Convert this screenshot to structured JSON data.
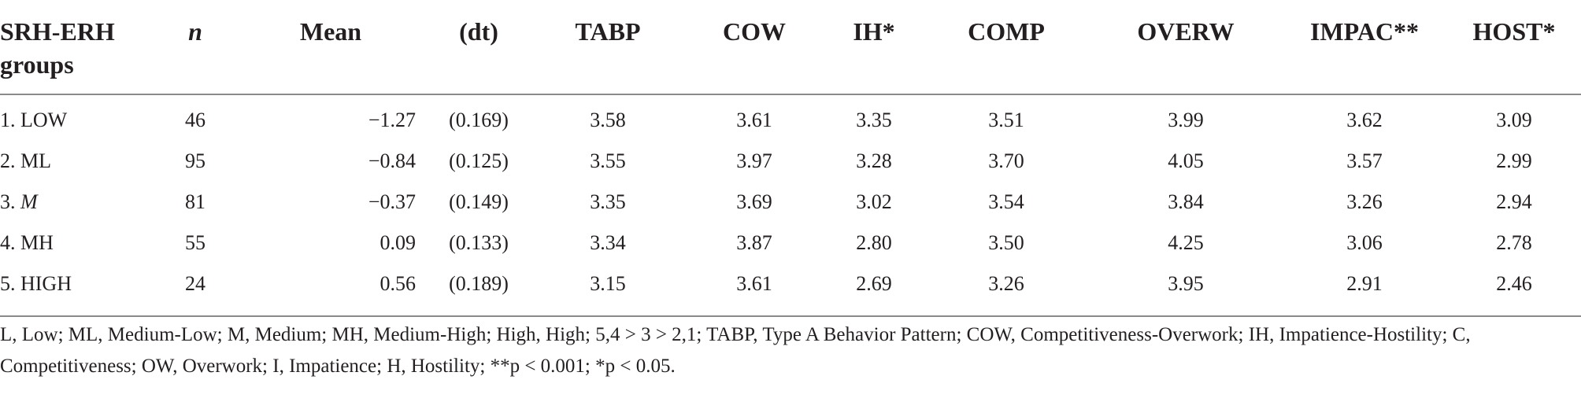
{
  "table": {
    "headers": {
      "group": "SRH-ERH groups",
      "n": "n",
      "mean": "Mean",
      "dt": "(dt)",
      "tabp": "TABP",
      "cow": "COW",
      "ih": "IH*",
      "comp": "COMP",
      "overw": "OVERW",
      "impac": "IMPAC**",
      "host": "HOST*"
    },
    "rows": [
      {
        "num": "1.",
        "group": "LOW",
        "n": "46",
        "mean": "−1.27",
        "dt": "(0.169)",
        "tabp": "3.58",
        "cow": "3.61",
        "ih": "3.35",
        "comp": "3.51",
        "overw": "3.99",
        "impac": "3.62",
        "host": "3.09"
      },
      {
        "num": "2.",
        "group": "ML",
        "n": "95",
        "mean": "−0.84",
        "dt": "(0.125)",
        "tabp": "3.55",
        "cow": "3.97",
        "ih": "3.28",
        "comp": "3.70",
        "overw": "4.05",
        "impac": "3.57",
        "host": "2.99"
      },
      {
        "num": "3.",
        "group": "M",
        "n": "81",
        "mean": "−0.37",
        "dt": "(0.149)",
        "tabp": "3.35",
        "cow": "3.69",
        "ih": "3.02",
        "comp": "3.54",
        "overw": "3.84",
        "impac": "3.26",
        "host": "2.94"
      },
      {
        "num": "4.",
        "group": "MH",
        "n": "55",
        "mean": "0.09",
        "dt": "(0.133)",
        "tabp": "3.34",
        "cow": "3.87",
        "ih": "2.80",
        "comp": "3.50",
        "overw": "4.25",
        "impac": "3.06",
        "host": "2.78"
      },
      {
        "num": "5.",
        "group": "HIGH",
        "n": "24",
        "mean": "0.56",
        "dt": "(0.189)",
        "tabp": "3.15",
        "cow": "3.61",
        "ih": "2.69",
        "comp": "3.26",
        "overw": "3.95",
        "impac": "2.91",
        "host": "2.46"
      }
    ]
  },
  "footnote": "L, Low; ML, Medium-Low; M, Medium; MH, Medium-High; High, High; 5,4 > 3 > 2,1; TABP, Type A Behavior Pattern; COW, Competitiveness-Overwork; IH, Impatience-Hostility; C, Competitiveness; OW, Overwork; I, Impatience; H, Hostility; **p < 0.001; *p < 0.05."
}
